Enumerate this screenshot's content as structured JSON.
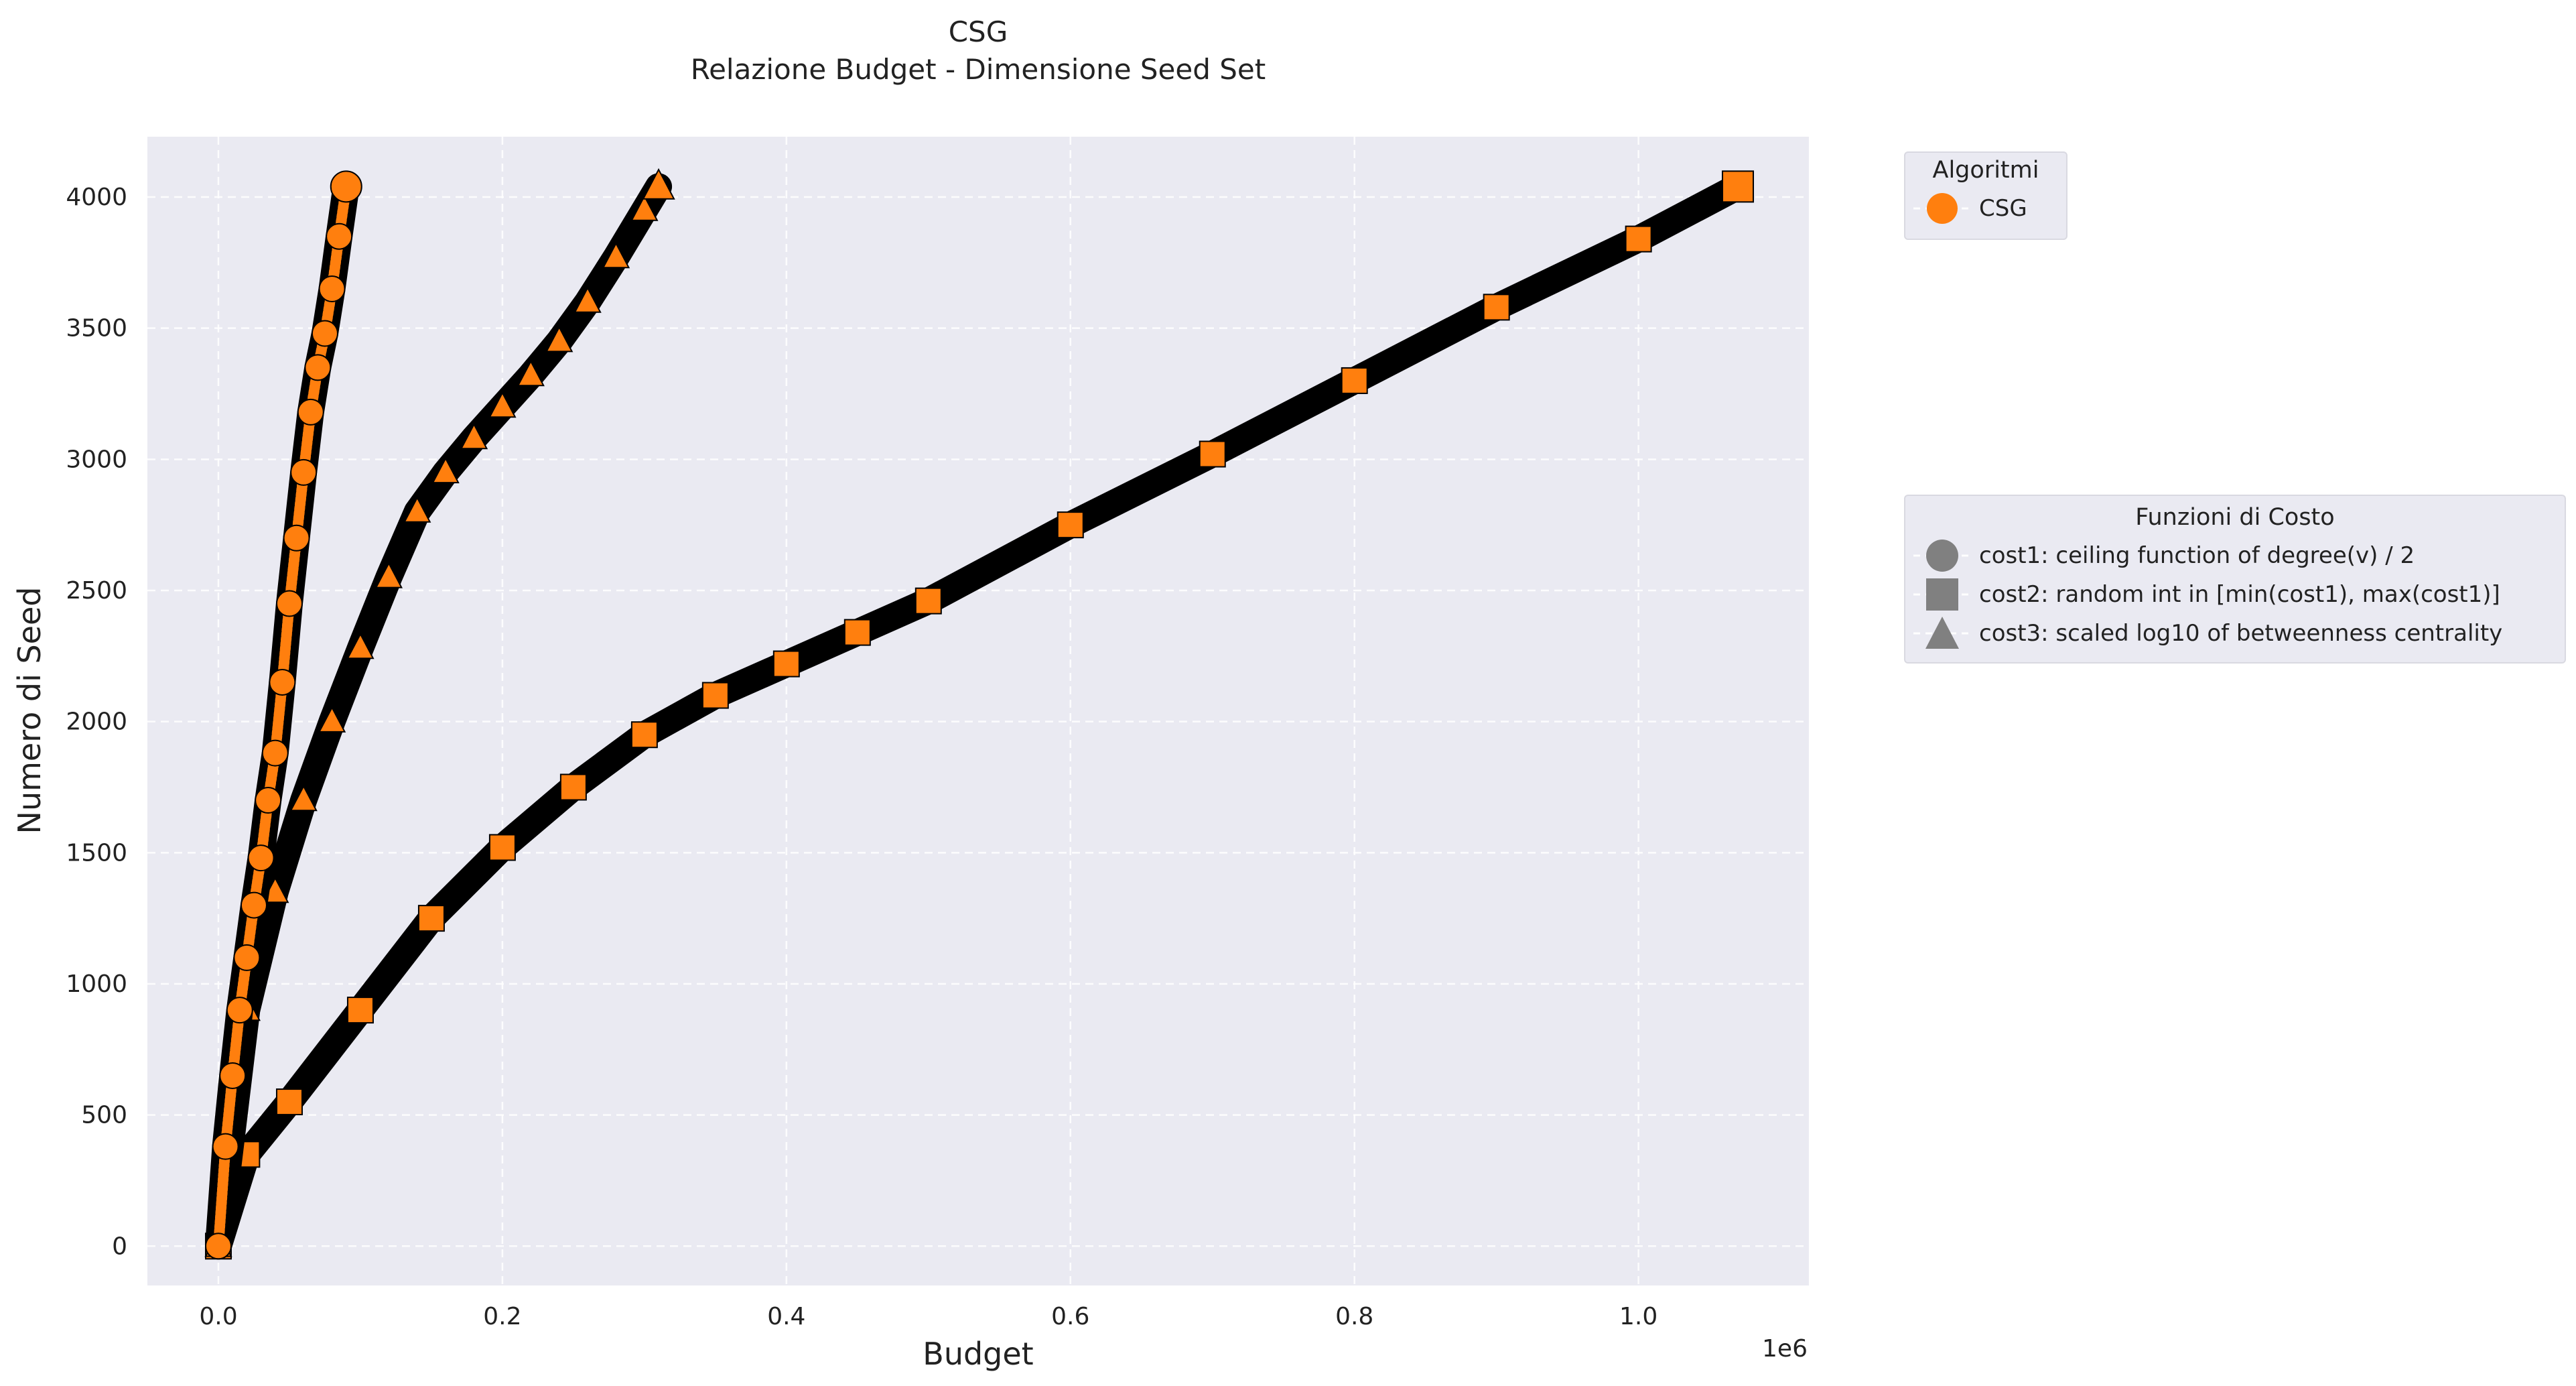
{
  "chart_data": {
    "type": "scatter",
    "title": "CSG",
    "subtitle": "Relazione Budget - Dimensione Seed Set",
    "xlabel": "Budget",
    "ylabel": "Numero di Seed",
    "x_offset_label": "1e6",
    "xlim": [
      -50000,
      1120000
    ],
    "ylim": [
      -150,
      4230
    ],
    "xticks": [
      0.0,
      0.2,
      0.4,
      0.6,
      0.8,
      1.0
    ],
    "xtick_labels": [
      "0.0",
      "0.2",
      "0.4",
      "0.6",
      "0.8",
      "1.0"
    ],
    "yticks": [
      0,
      500,
      1000,
      1500,
      2000,
      2500,
      3000,
      3500,
      4000
    ],
    "ytick_labels": [
      "0",
      "500",
      "1000",
      "1500",
      "2000",
      "2500",
      "3000",
      "3500",
      "4000"
    ],
    "grid": true,
    "marker_color": "#ff7f0e",
    "series": [
      {
        "algorithm": "CSG",
        "cost_function": "cost1",
        "marker": "circle",
        "x": [
          0,
          5000,
          10000,
          15000,
          20000,
          25000,
          30000,
          35000,
          40000,
          45000,
          50000,
          55000,
          60000,
          65000,
          70000,
          75000,
          80000,
          85000,
          90000
        ],
        "y": [
          0,
          380,
          650,
          900,
          1100,
          1300,
          1480,
          1700,
          1880,
          2150,
          2450,
          2700,
          2950,
          3180,
          3350,
          3480,
          3650,
          3850,
          4040
        ]
      },
      {
        "algorithm": "CSG",
        "cost_function": "cost2",
        "marker": "square",
        "x": [
          0,
          20000,
          50000,
          100000,
          150000,
          200000,
          250000,
          300000,
          350000,
          400000,
          450000,
          500000,
          600000,
          700000,
          800000,
          900000,
          1000000,
          1070000
        ],
        "y": [
          0,
          350,
          550,
          900,
          1250,
          1520,
          1750,
          1950,
          2100,
          2220,
          2340,
          2460,
          2750,
          3020,
          3300,
          3580,
          3840,
          4040
        ]
      },
      {
        "algorithm": "CSG",
        "cost_function": "cost3",
        "marker": "triangle",
        "x": [
          0,
          20000,
          40000,
          60000,
          80000,
          100000,
          120000,
          140000,
          160000,
          180000,
          200000,
          220000,
          240000,
          260000,
          280000,
          300000,
          310000
        ],
        "y": [
          0,
          900,
          1350,
          1700,
          2000,
          2280,
          2550,
          2800,
          2950,
          3080,
          3200,
          3320,
          3450,
          3600,
          3770,
          3950,
          4040
        ]
      }
    ],
    "legends": [
      {
        "title": "Algoritmi",
        "placement": "right-top",
        "entries": [
          {
            "label": "CSG",
            "marker": "circle"
          }
        ]
      },
      {
        "title": "Funzioni di Costo",
        "placement": "right-middle",
        "entries": [
          {
            "label": "cost1: ceiling function of degree(v) / 2",
            "marker": "circle"
          },
          {
            "label": "cost2: random int in [min(cost1), max(cost1)]",
            "marker": "square"
          },
          {
            "label": "cost3: scaled log10 of betweenness centrality",
            "marker": "triangle"
          }
        ]
      }
    ]
  }
}
